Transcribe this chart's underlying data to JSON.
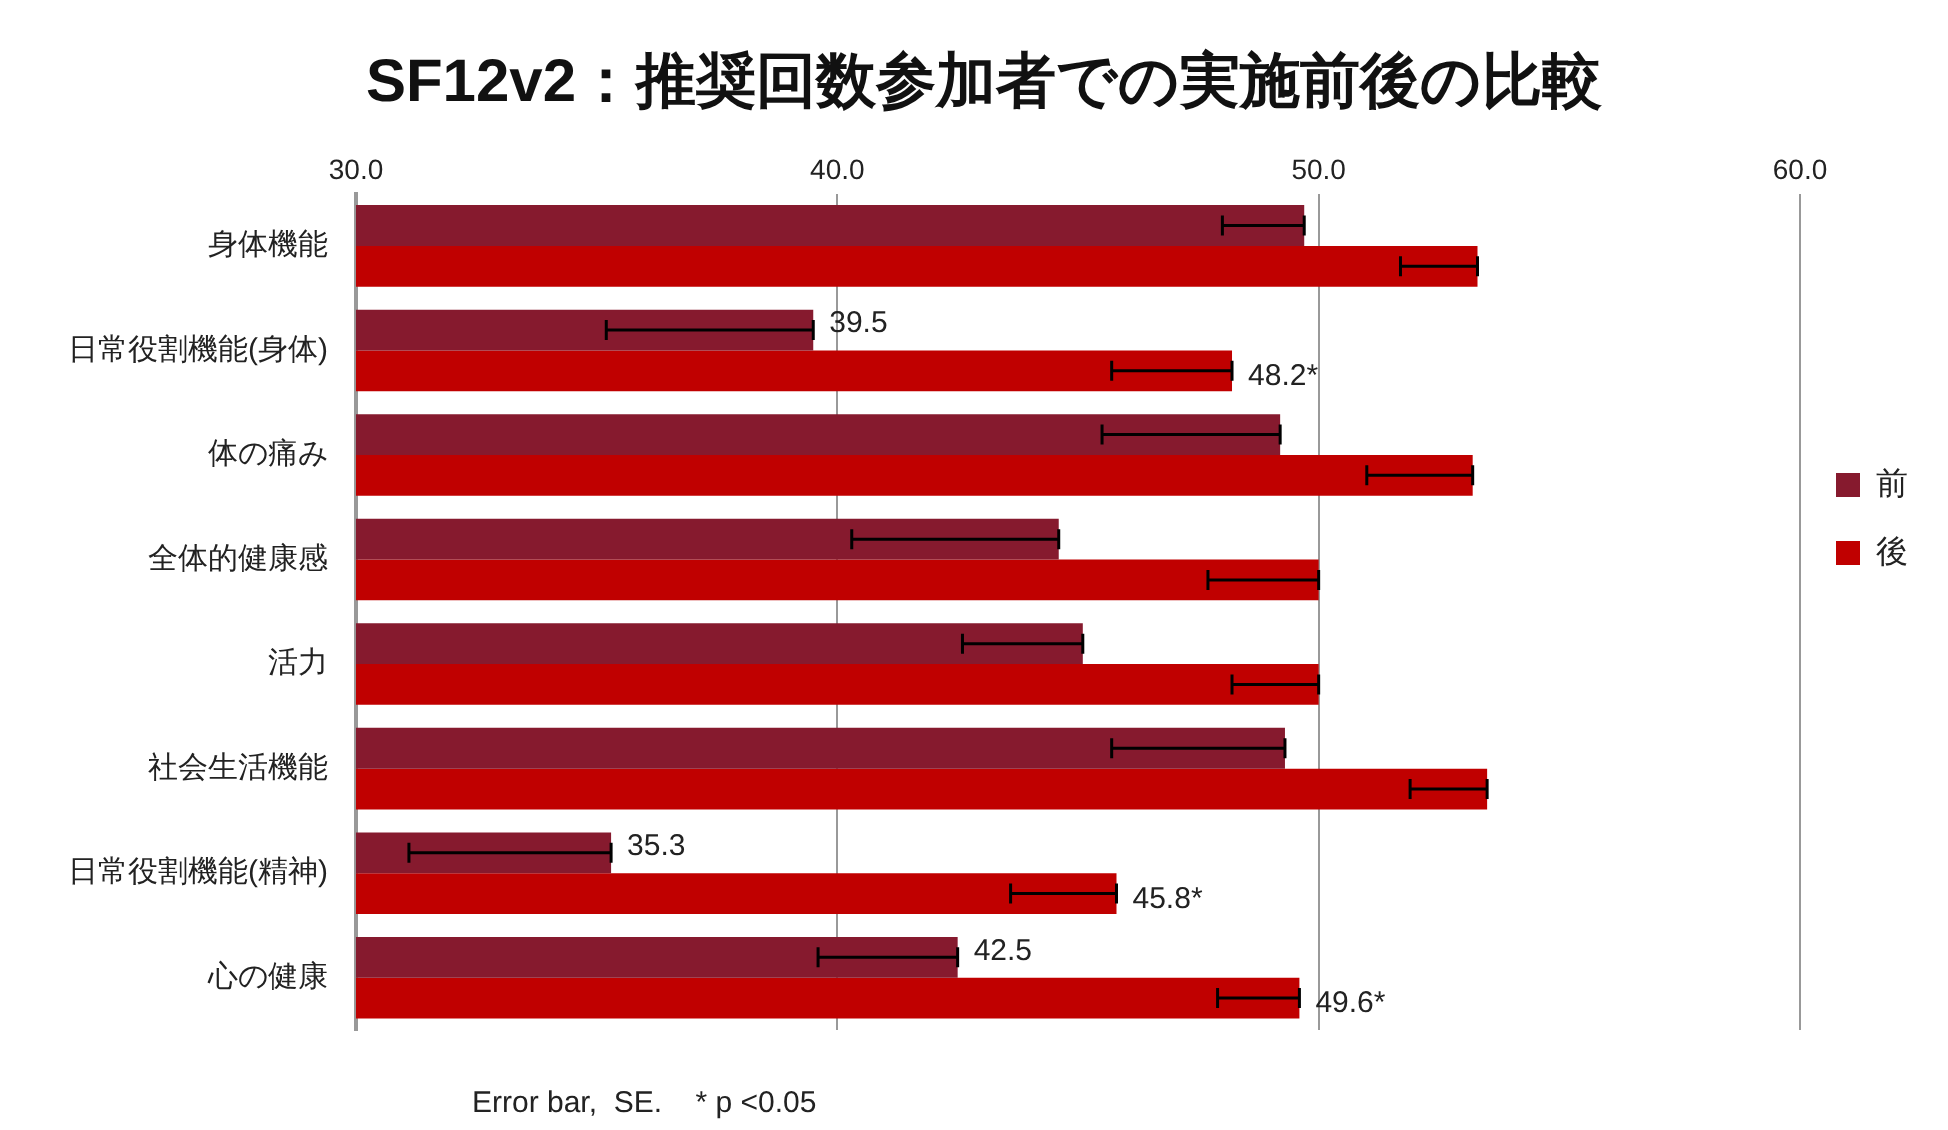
{
  "chart_data": {
    "type": "bar",
    "orientation": "horizontal",
    "title": "SF12v2：推奨回数参加者での実施前後の比較",
    "categories": [
      "身体機能",
      "日常役割機能(身体)",
      "体の痛み",
      "全体的健康感",
      "活力",
      "社会生活機能",
      "日常役割機能(精神)",
      "心の健康"
    ],
    "series": [
      {
        "name": "前",
        "color": "#861a2e",
        "values": [
          49.7,
          39.5,
          49.2,
          44.6,
          45.1,
          49.3,
          35.3,
          42.5
        ],
        "errors": [
          [
            48.0,
            49.7
          ],
          [
            35.2,
            39.5
          ],
          [
            45.5,
            49.2
          ],
          [
            40.3,
            44.6
          ],
          [
            42.6,
            45.1
          ],
          [
            45.7,
            49.3
          ],
          [
            31.1,
            35.3
          ],
          [
            39.6,
            42.5
          ]
        ],
        "value_labels": [
          null,
          "39.5",
          null,
          null,
          null,
          null,
          "35.3",
          "42.5"
        ]
      },
      {
        "name": "後",
        "color": "#c00000",
        "values": [
          53.3,
          48.2,
          53.2,
          50.0,
          50.0,
          53.5,
          45.8,
          49.6
        ],
        "errors": [
          [
            51.7,
            53.3
          ],
          [
            45.7,
            48.2
          ],
          [
            51.0,
            53.2
          ],
          [
            47.7,
            50.0
          ],
          [
            48.2,
            50.0
          ],
          [
            51.9,
            53.5
          ],
          [
            43.6,
            45.8
          ],
          [
            47.9,
            49.6
          ]
        ],
        "value_labels": [
          null,
          "48.2*",
          null,
          null,
          null,
          null,
          "45.8*",
          "49.6*"
        ]
      }
    ],
    "xlim": [
      30,
      60
    ],
    "xticks": [
      {
        "value": 30,
        "label": "30.0"
      },
      {
        "value": 40,
        "label": "40.0"
      },
      {
        "value": 50,
        "label": "50.0"
      },
      {
        "value": 60,
        "label": "60.0"
      }
    ],
    "grid": "x",
    "legend": "right",
    "annotations": [
      "Error bar,  SE.    * p <0.05"
    ]
  }
}
